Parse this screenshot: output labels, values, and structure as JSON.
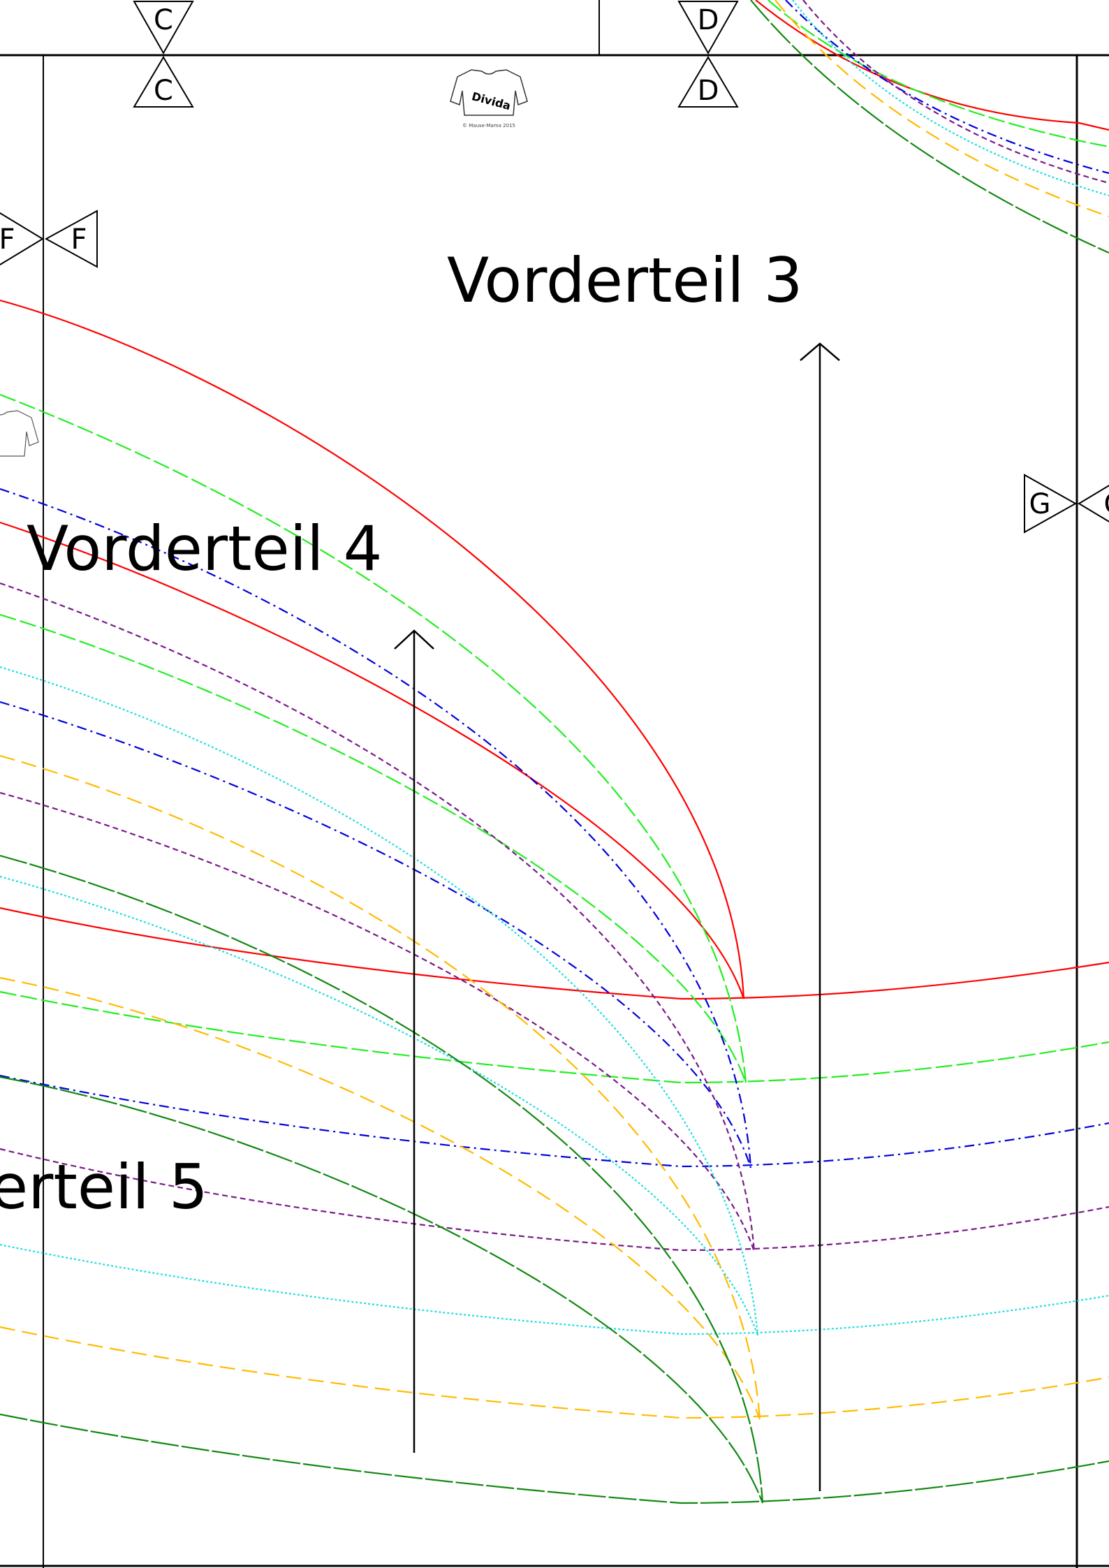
{
  "pieces": {
    "vorderteil3": "Vorderteil 3",
    "vorderteil4": "Vorderteil 4",
    "vorderteil5": "erteil 5"
  },
  "markers": {
    "c": "C",
    "d": "D",
    "f": "F",
    "g": "G",
    "g_cut": "G"
  },
  "logo": {
    "brand": "Divida",
    "copyright": "© Mause-Mama 2015"
  },
  "size_colors": [
    "#ff0000",
    "#22ee22",
    "#0000dd",
    "#7a1a8a",
    "#22dddd",
    "#ffbb00",
    "#118811"
  ]
}
